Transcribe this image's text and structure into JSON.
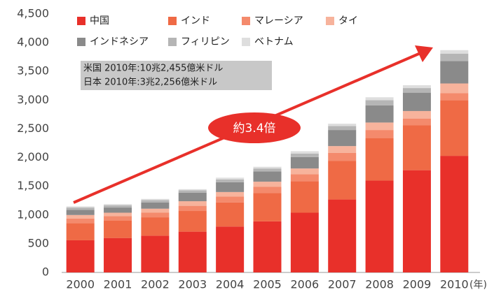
{
  "chart_data": {
    "type": "stacked_bar",
    "categories": [
      "2000",
      "2001",
      "2002",
      "2003",
      "2004",
      "2005",
      "2006",
      "2007",
      "2008",
      "2009",
      "2010"
    ],
    "x_unit_label": "(年)",
    "series": [
      {
        "name": "中国",
        "color": "#e8302a",
        "values": [
          560,
          600,
          640,
          710,
          800,
          890,
          1040,
          1270,
          1600,
          1780,
          2030
        ]
      },
      {
        "name": "インド",
        "color": "#ef6a45",
        "values": [
          300,
          300,
          320,
          360,
          420,
          490,
          550,
          670,
          740,
          780,
          970
        ]
      },
      {
        "name": "マレーシア",
        "color": "#f48a6c",
        "values": [
          80,
          80,
          80,
          90,
          100,
          110,
          120,
          140,
          140,
          120,
          120
        ]
      },
      {
        "name": "タイ",
        "color": "#f7b39c",
        "values": [
          60,
          60,
          70,
          80,
          80,
          90,
          100,
          120,
          130,
          130,
          170
        ]
      },
      {
        "name": "インドネシア",
        "color": "#8a8a8a",
        "values": [
          90,
          90,
          110,
          150,
          170,
          180,
          200,
          280,
          300,
          320,
          390
        ]
      },
      {
        "name": "フィリピン",
        "color": "#b5b5b5",
        "values": [
          40,
          40,
          40,
          40,
          50,
          50,
          60,
          70,
          90,
          80,
          130
        ]
      },
      {
        "name": "ベトナム",
        "color": "#dedede",
        "values": [
          20,
          20,
          20,
          20,
          30,
          30,
          40,
          40,
          50,
          50,
          60
        ]
      }
    ],
    "ylim": [
      0,
      4500
    ],
    "yticks": [
      0,
      {
        "value": 500,
        "label": "500"
      },
      {
        "value": 1000,
        "label": "1,000"
      },
      {
        "value": 1500,
        "label": "1,500"
      },
      {
        "value": 2000,
        "label": "2,000"
      },
      {
        "value": 2500,
        "label": "2,500"
      },
      {
        "value": 3000,
        "label": "3,000"
      },
      {
        "value": 3500,
        "label": "3,500"
      },
      {
        "value": 4000,
        "label": "4,000"
      },
      {
        "value": 4500,
        "label": "4,500"
      }
    ],
    "info_box": [
      "米国 2010年:10兆2,455億米ドル",
      "日本 2010年:3兆2,256億米ドル"
    ],
    "annotation": "約3.4倍"
  }
}
